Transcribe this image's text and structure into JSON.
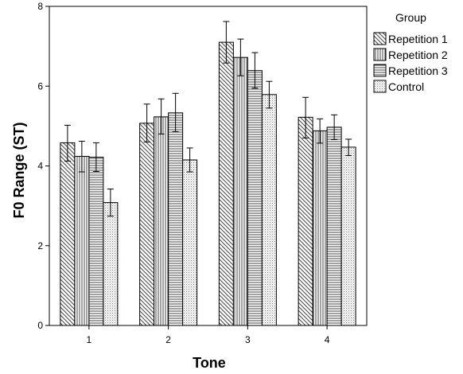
{
  "chart_data": {
    "type": "bar",
    "xlabel": "Tone",
    "ylabel": "F0 Range (ST)",
    "ylim": [
      0,
      8
    ],
    "yticks": [
      0,
      2,
      4,
      6,
      8
    ],
    "categories": [
      "1",
      "2",
      "3",
      "4"
    ],
    "legend": {
      "title": "Group",
      "placement": "top-right, outside plot"
    },
    "series": [
      {
        "name": "Repetition 1",
        "pattern": "diagonal-hatch",
        "values": [
          4.58,
          5.07,
          7.1,
          5.22
        ],
        "error_low": [
          4.12,
          4.6,
          6.58,
          4.7
        ],
        "error_high": [
          5.02,
          5.55,
          7.62,
          5.72
        ]
      },
      {
        "name": "Repetition 2",
        "pattern": "vertical-lines",
        "values": [
          4.24,
          5.23,
          6.72,
          4.88
        ],
        "error_low": [
          3.85,
          4.8,
          6.26,
          4.57
        ],
        "error_high": [
          4.62,
          5.68,
          7.18,
          5.18
        ]
      },
      {
        "name": "Repetition 3",
        "pattern": "horizontal-lines",
        "values": [
          4.22,
          5.33,
          6.39,
          4.97
        ],
        "error_low": [
          3.86,
          4.86,
          5.95,
          4.66
        ],
        "error_high": [
          4.58,
          5.82,
          6.84,
          5.28
        ]
      },
      {
        "name": "Control",
        "pattern": "dots",
        "values": [
          3.08,
          4.15,
          5.79,
          4.47
        ],
        "error_low": [
          2.74,
          3.85,
          5.45,
          4.26
        ],
        "error_high": [
          3.42,
          4.45,
          6.12,
          4.67
        ]
      }
    ],
    "grid": false,
    "colors": {
      "line": "#000000",
      "background": "#ffffff",
      "pattern_stroke": "#444444"
    }
  }
}
